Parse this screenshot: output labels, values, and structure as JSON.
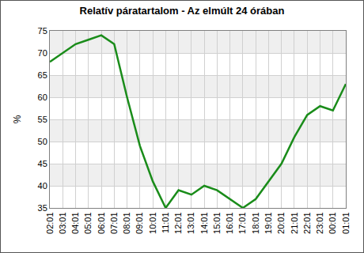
{
  "chart_data": {
    "type": "line",
    "title": "Relatív páratartalom - Az elmúlt 24 órában",
    "y_label": "%",
    "categories": [
      "02:01",
      "03:01",
      "04:01",
      "05:01",
      "06:01",
      "07:01",
      "08:01",
      "09:01",
      "10:01",
      "11:01",
      "12:01",
      "13:01",
      "14:01",
      "15:01",
      "16:01",
      "17:01",
      "18:01",
      "19:01",
      "20:01",
      "21:01",
      "22:01",
      "23:01",
      "00:01",
      "01:01"
    ],
    "values": [
      68,
      70,
      72,
      73,
      74,
      72,
      60,
      49,
      41,
      35,
      39,
      38,
      40,
      39,
      37,
      35,
      37,
      41,
      45,
      51,
      56,
      58,
      57,
      63
    ],
    "color": "#1a8c1a",
    "ylim": [
      35,
      75
    ],
    "yticks": [
      35,
      40,
      45,
      50,
      55,
      60,
      65,
      70,
      75
    ],
    "grid": true
  }
}
